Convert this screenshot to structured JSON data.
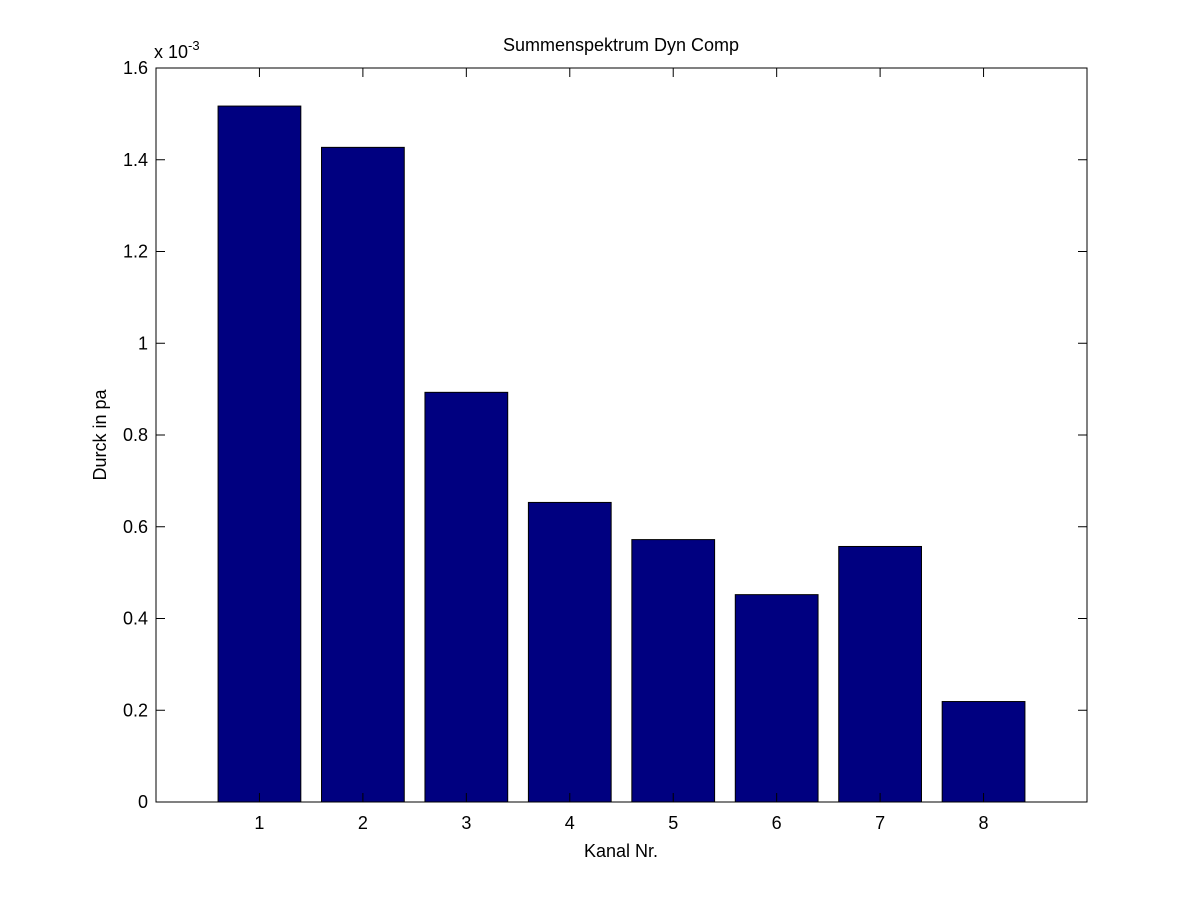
{
  "chart_data": {
    "type": "bar",
    "title": "Summenspektrum Dyn Comp",
    "xlabel": "Kanal Nr.",
    "ylabel": "Durck in pa",
    "y_multiplier_label": {
      "base": "x 10",
      "exponent": "-3"
    },
    "categories": [
      "1",
      "2",
      "3",
      "4",
      "5",
      "6",
      "7",
      "8"
    ],
    "values": [
      1.517,
      1.427,
      0.893,
      0.653,
      0.572,
      0.452,
      0.557,
      0.219
    ],
    "value_scale": 0.001,
    "ylim": [
      0,
      1.6
    ],
    "xlim": [
      0,
      9
    ],
    "y_ticks": [
      "0",
      "0.2",
      "0.4",
      "0.6",
      "0.8",
      "1",
      "1.2",
      "1.4",
      "1.6"
    ],
    "y_tick_values": [
      0,
      0.2,
      0.4,
      0.6,
      0.8,
      1.0,
      1.2,
      1.4,
      1.6
    ],
    "grid": false,
    "bar_color": "#000080",
    "bar_edge_color": "#000000"
  }
}
